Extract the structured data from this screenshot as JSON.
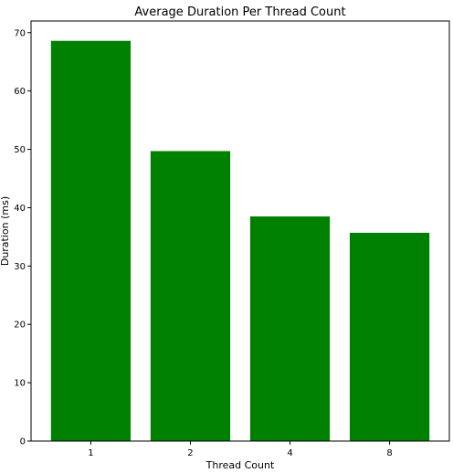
{
  "chart_data": {
    "type": "bar",
    "title": "Average Duration Per Thread Count",
    "xlabel": "Thread Count",
    "ylabel": "Duration (ms)",
    "categories": [
      "1",
      "2",
      "4",
      "8"
    ],
    "values": [
      68.6,
      49.7,
      38.5,
      35.7
    ],
    "ylim": [
      0,
      72
    ],
    "yticks": [
      0,
      10,
      20,
      30,
      40,
      50,
      60,
      70
    ],
    "bar_color": "#008000",
    "grid": false,
    "legend": "none"
  }
}
